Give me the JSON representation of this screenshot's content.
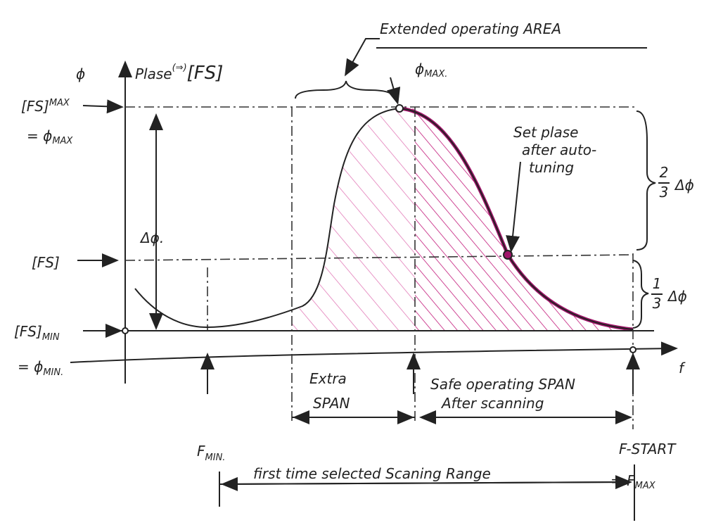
{
  "annotations": {
    "top": "Extended operating AREA",
    "phi_axis": "ϕ",
    "phase_axis": {
      "main": "Plase",
      "sup": "(⇒)",
      "tail": "[FS]"
    },
    "fs_max": {
      "main": "[FS]",
      "sub": "MAX"
    },
    "phi_max_left": {
      "main": "= ϕ",
      "sub": "MAX"
    },
    "delta_phi": "Δϕ.",
    "fs": "[FS]",
    "fs_min": {
      "main": "[FS]",
      "sub": "MIN"
    },
    "phi_min": {
      "main": "= ϕ",
      "sub": "MIN."
    },
    "phi_max_top": {
      "main": "ϕ",
      "sub": "MAX."
    },
    "set_phase": [
      "Set plase",
      "after auto-",
      "tuning"
    ],
    "two_thirds": {
      "num": "2",
      "den": "3",
      "text": "Δϕ"
    },
    "one_third": {
      "num": "1",
      "den": "3",
      "text": "Δϕ"
    },
    "f_axis": "f",
    "extra_span": [
      "Extra",
      "SPAN"
    ],
    "safe_span": [
      "Safe operating SPAN",
      "After scanning"
    ],
    "f_min": {
      "main": "F",
      "sub": "MIN."
    },
    "f_start": "F-START",
    "f_max": {
      "main": "= F",
      "sub": "MAX"
    },
    "scan_range": "first time selected Scaning Range"
  }
}
